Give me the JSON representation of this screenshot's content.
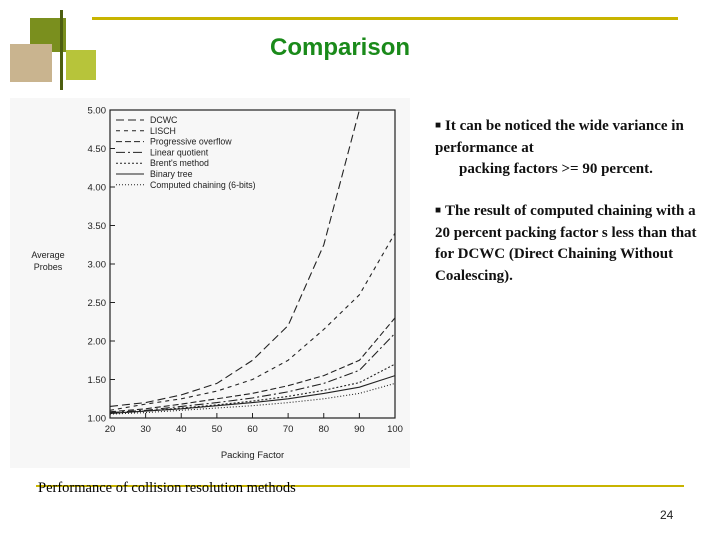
{
  "slide": {
    "title": "Comparison",
    "bullet1_line1": "It can be noticed the wide variance in performance at",
    "bullet1_line2": "packing factors >= 90 percent.",
    "bullet2": "The result of computed chaining with a 20 percent packing factor s less than that for DCWC (Direct Chaining Without Coalescing).",
    "caption": "Performance of collision resolution methods",
    "page_number": "24",
    "accent_color": "#c8b400",
    "title_color": "#1a8a1a"
  },
  "chart_data": {
    "type": "line",
    "xlabel": "Packing Factor",
    "ylabel": "Average Probes",
    "x": [
      20,
      30,
      40,
      50,
      60,
      70,
      80,
      90,
      100
    ],
    "x_ticks": [
      "20",
      "30",
      "40",
      "50",
      "60",
      "70",
      "80",
      "90",
      "100"
    ],
    "y_ticks": [
      "1.00",
      "1.50",
      "2.00",
      "2.50",
      "3.00",
      "3.50",
      "4.00",
      "4.50",
      "5.00"
    ],
    "xlim": [
      20,
      100
    ],
    "ylim": [
      1.0,
      5.0
    ],
    "legend_position": "top-left",
    "series": [
      {
        "name": "DCWC",
        "dash": "8,4",
        "values": [
          1.15,
          1.2,
          1.3,
          1.45,
          1.75,
          2.2,
          3.25,
          5.0,
          null
        ]
      },
      {
        "name": "LISCH",
        "dash": "4,4",
        "values": [
          1.1,
          1.18,
          1.25,
          1.35,
          1.5,
          1.75,
          2.15,
          2.6,
          3.4
        ]
      },
      {
        "name": "Progressive overflow",
        "dash": "6,3",
        "values": [
          1.08,
          1.12,
          1.18,
          1.25,
          1.32,
          1.42,
          1.55,
          1.75,
          2.3
        ]
      },
      {
        "name": "Linear quotient",
        "dash": "9,3,2,3",
        "values": [
          1.07,
          1.1,
          1.15,
          1.2,
          1.26,
          1.34,
          1.45,
          1.62,
          2.1
        ]
      },
      {
        "name": "Brent's method",
        "dash": "2,2",
        "values": [
          1.06,
          1.09,
          1.13,
          1.17,
          1.22,
          1.28,
          1.36,
          1.46,
          1.7
        ]
      },
      {
        "name": "Binary tree",
        "dash": "",
        "values": [
          1.06,
          1.09,
          1.12,
          1.16,
          1.2,
          1.25,
          1.32,
          1.4,
          1.55
        ]
      },
      {
        "name": "Computed chaining (6-bits)",
        "dash": "1,2",
        "values": [
          1.05,
          1.07,
          1.1,
          1.13,
          1.16,
          1.2,
          1.25,
          1.32,
          1.45
        ]
      }
    ]
  }
}
